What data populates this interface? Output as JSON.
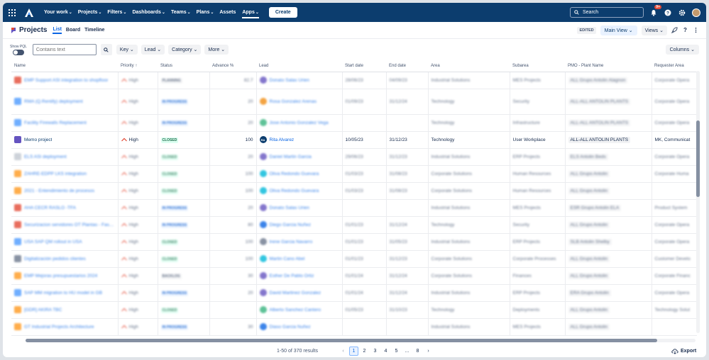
{
  "topnav": {
    "items": [
      {
        "label": "Your work",
        "chev": "⌄"
      },
      {
        "label": "Projects",
        "chev": "⌄"
      },
      {
        "label": "Filters",
        "chev": "⌄"
      },
      {
        "label": "Dashboards",
        "chev": "⌄"
      },
      {
        "label": "Teams",
        "chev": "⌄"
      },
      {
        "label": "Plans",
        "chev": "⌄"
      },
      {
        "label": "Assets",
        "chev": ""
      },
      {
        "label": "Apps",
        "chev": "⌄"
      }
    ],
    "create_label": "Create",
    "search_placeholder": "Search",
    "notifications_badge": "9+"
  },
  "project": {
    "title": "Projects",
    "tabs": [
      "List",
      "Board",
      "Timeline"
    ],
    "edited_label": "EDITED",
    "main_view_label": "Main View ⌄",
    "views_label": "Views ⌄"
  },
  "filters": {
    "show_label": "Show PQL",
    "text_placeholder": "Contains text",
    "buttons": [
      "Key ⌄",
      "Lead ⌄",
      "Category ⌄",
      "More ⌄"
    ],
    "columns_label": "Columns ⌄"
  },
  "table": {
    "headers": [
      "Name",
      "Priority ↑",
      "Status",
      "Advance %",
      "Lead",
      "Start date",
      "End date",
      "Area",
      "Subarea",
      "PMO - Plant Name",
      "Requester Area"
    ],
    "rows": [
      {
        "name": "EMP Support ASI integration to shopfloor",
        "pic": "#e34935",
        "priority": "High",
        "status": "PLANNING",
        "st": "planned",
        "advance": "82.7",
        "lead": "Donato Salas Urien",
        "lav": "#6554c0",
        "start": "28/06/23",
        "end": "04/09/23",
        "area": "Industrial Solutions",
        "subarea": "MES Projects",
        "plant": "ALL Grupo Antolin Alagnon",
        "req": "Corporate Opera",
        "blur": true
      },
      {
        "name": "RMA (Q.Rentify) deployment",
        "pic": "#4c9aff",
        "priority": "High",
        "status": "IN PROGRESS",
        "st": "progress",
        "advance": "20",
        "lead": "Rosa Gonzalez Arenas",
        "lav": "#f18d13",
        "start": "01/09/23",
        "end": "31/12/24",
        "area": "Technology",
        "subarea": "Security",
        "plant": "ALL-ALL ANTOLIN PLANTS",
        "req": "Corporate Opera",
        "blur": true,
        "tall": true
      },
      {
        "name": "Facility Firewalls Replacement",
        "pic": "#4c9aff",
        "priority": "High",
        "status": "IN PROGRESS",
        "st": "progress",
        "advance": "20",
        "lead": "Jose Antonio Gonzalez Vega",
        "lav": "#36b37e",
        "start": "",
        "end": "",
        "area": "Technology",
        "subarea": "Infrastructure",
        "plant": "ALL-ALL ANTOLIN PLANTS",
        "req": "Corporate Opera",
        "blur": true
      },
      {
        "name": "Memo project",
        "pic": "#6554c0",
        "priority": "High",
        "status": "CLOSED",
        "st": "closed",
        "advance": "100",
        "lead": "Rita Alvarez",
        "lav": "#0c3d6e",
        "lav_txt": "RA",
        "start": "10/05/23",
        "end": "31/12/23",
        "area": "Technology",
        "subarea": "User Workplace",
        "plant": "ALL-ALL ANTOLIN PLANTS",
        "req": "MK, Communicat",
        "blur": false
      },
      {
        "name": "ELS ASI deployment",
        "pic": "#c1c7d0",
        "priority": "High",
        "status": "CLOSED",
        "st": "closed",
        "advance": "20",
        "lead": "Daniel Martin Garcia",
        "lav": "#6554c0",
        "start": "29/06/23",
        "end": "31/12/23",
        "area": "Industrial Solutions",
        "subarea": "ERP Projects",
        "plant": "ELS Antolin Beds",
        "req": "Corporate Opera",
        "blur": true
      },
      {
        "name": "ZAHRE-EDPP LKS integration",
        "pic": "#ff991f",
        "priority": "High",
        "status": "CLOSED",
        "st": "closed",
        "advance": "100",
        "lead": "Oliva Redondo Guevara",
        "lav": "#00b8d9",
        "start": "01/03/23",
        "end": "31/08/23",
        "area": "Corporate Solutions",
        "subarea": "Human Resources",
        "plant": "ALL Grupo Antolin",
        "req": "Corporate Huma",
        "blur": true
      },
      {
        "name": "2021 - Entendimiento de procesos",
        "pic": "#ff991f",
        "priority": "High",
        "status": "CLOSED",
        "st": "closed",
        "advance": "100",
        "lead": "Oliva Redondo Guevara",
        "lav": "#00b8d9",
        "start": "01/03/23",
        "end": "31/08/23",
        "area": "Corporate Solutions",
        "subarea": "Human Resources",
        "plant": "ALL Grupo Antolin",
        "req": "",
        "blur": true
      },
      {
        "name": "AHA CECR RASLO -TFA",
        "pic": "#e34935",
        "priority": "High",
        "status": "IN PROGRESS",
        "st": "progress",
        "advance": "20",
        "lead": "Donato Salas Urien",
        "lav": "#6554c0",
        "start": "",
        "end": "",
        "area": "Industrial Solutions",
        "subarea": "MES Projects",
        "plant": "ESR Grupo Antolin ELA",
        "req": "Product System",
        "blur": true
      },
      {
        "name": "Securizacion servidores OT Plantas - Fase 2",
        "pic": "#e34935",
        "priority": "High",
        "status": "IN PROGRESS",
        "st": "progress",
        "advance": "80",
        "lead": "Diego Garcia Nuñez",
        "lav": "#0c66e4",
        "start": "01/01/23",
        "end": "31/12/24",
        "area": "Technology",
        "subarea": "Security",
        "plant": "ALL Grupo Antolin",
        "req": "Corporate Opera",
        "blur": true
      },
      {
        "name": "USA SAP QM rollout in USA",
        "pic": "#4c9aff",
        "priority": "High",
        "status": "CLOSED",
        "st": "closed",
        "advance": "100",
        "lead": "Irene Garcia Navarro",
        "lav": "#6b778c",
        "start": "01/01/23",
        "end": "31/05/23",
        "area": "Industrial Solutions",
        "subarea": "ERP Projects",
        "plant": "SLB Antolin Shelby",
        "req": "Corporate Opera",
        "blur": true
      },
      {
        "name": "Digitalización pedidos clientes",
        "pic": "#6b778c",
        "priority": "High",
        "status": "CLOSED",
        "st": "closed",
        "advance": "100",
        "lead": "Martin Cano Abel",
        "lav": "#00b8d9",
        "start": "01/01/23",
        "end": "31/12/23",
        "area": "Corporate Solutions",
        "subarea": "Corporate Processes",
        "plant": "ALL Grupo Antolin",
        "req": "Customer Develo",
        "blur": true
      },
      {
        "name": "EMP Mejoras presupuestarios 2024",
        "pic": "#ff991f",
        "priority": "High",
        "status": "BACKLOG",
        "st": "planned",
        "advance": "30",
        "lead": "Esther De Pablo Ortiz",
        "lav": "#6554c0",
        "start": "01/01/24",
        "end": "31/12/24",
        "area": "Corporate Solutions",
        "subarea": "Finances",
        "plant": "ALL Grupo Antolin",
        "req": "Corporate Financ",
        "blur": true
      },
      {
        "name": "SAP MM migration to HU model in GB",
        "pic": "#4c9aff",
        "priority": "High",
        "status": "IN PROGRESS",
        "st": "progress",
        "advance": "20",
        "lead": "David Martinez Gonzalez",
        "lav": "#6554c0",
        "start": "01/01/24",
        "end": "31/12/24",
        "area": "Industrial Solutions",
        "subarea": "ERP Projects",
        "plant": "ERA Grupo Antolin",
        "req": "Corporate Opera",
        "blur": true
      },
      {
        "name": "[GDR] AKIRA TBC",
        "pic": "#ff991f",
        "priority": "High",
        "status": "CLOSED",
        "st": "closed",
        "advance": "",
        "lead": "Alberto Sanchez Cantero",
        "lav": "#36b37e",
        "start": "01/05/23",
        "end": "31/10/23",
        "area": "Technology",
        "subarea": "Deployments",
        "plant": "ALL Grupo Antolin",
        "req": "Technology Solut",
        "blur": true
      },
      {
        "name": "GT Industrial Projects Architecture",
        "pic": "#ff991f",
        "priority": "High",
        "status": "IN PROGRESS",
        "st": "progress",
        "advance": "30",
        "lead": "Diaso Garcia Nuñez",
        "lav": "#0c66e4",
        "start": "",
        "end": "",
        "area": "Industrial Solutions",
        "subarea": "MES Projects",
        "plant": "ALL Grupo Antolin",
        "req": "",
        "blur": true
      }
    ]
  },
  "footer": {
    "results": "1-50 of 370 results",
    "pages": [
      "1",
      "2",
      "3",
      "4",
      "5",
      "...",
      "8"
    ],
    "export_label": "Export"
  }
}
